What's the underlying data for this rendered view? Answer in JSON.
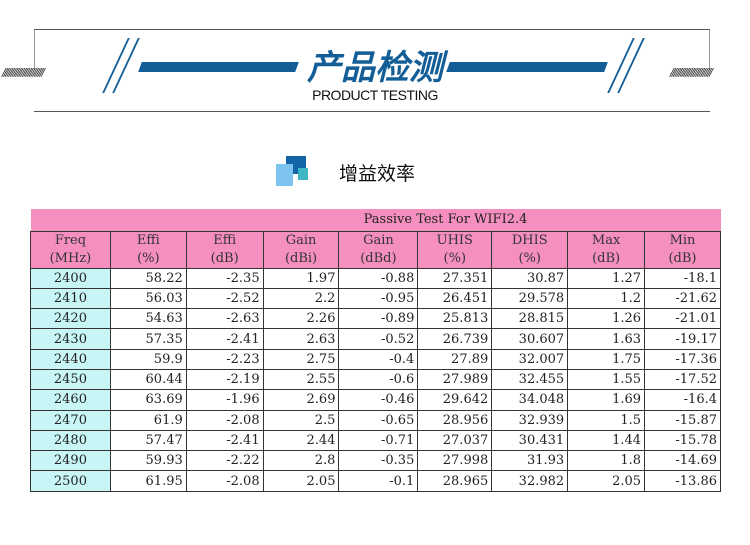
{
  "banner": {
    "title": "产品检测",
    "subtitle": "PRODUCT TESTING",
    "accent": "#135e96"
  },
  "section": {
    "title": "增益效率",
    "icon": "stacked-squares-icon"
  },
  "table": {
    "caption": "Passive Test For WIFI2.4",
    "headers": [
      [
        "Freq",
        "(MHz)"
      ],
      [
        "Effi",
        "(%)"
      ],
      [
        "Effi",
        "(dB)"
      ],
      [
        "Gain",
        "(dBi)"
      ],
      [
        "Gain",
        "(dBd)"
      ],
      [
        "UHIS",
        "(%)"
      ],
      [
        "DHIS",
        "(%)"
      ],
      [
        "Max",
        "(dB)"
      ],
      [
        "Min",
        "(dB)"
      ]
    ],
    "rows": [
      [
        "2400",
        "58.22",
        "-2.35",
        "1.97",
        "-0.88",
        "27.351",
        "30.87",
        "1.27",
        "-18.1"
      ],
      [
        "2410",
        "56.03",
        "-2.52",
        "2.2",
        "-0.95",
        "26.451",
        "29.578",
        "1.2",
        "-21.62"
      ],
      [
        "2420",
        "54.63",
        "-2.63",
        "2.26",
        "-0.89",
        "25.813",
        "28.815",
        "1.26",
        "-21.01"
      ],
      [
        "2430",
        "57.35",
        "-2.41",
        "2.63",
        "-0.52",
        "26.739",
        "30.607",
        "1.63",
        "-19.17"
      ],
      [
        "2440",
        "59.9",
        "-2.23",
        "2.75",
        "-0.4",
        "27.89",
        "32.007",
        "1.75",
        "-17.36"
      ],
      [
        "2450",
        "60.44",
        "-2.19",
        "2.55",
        "-0.6",
        "27.989",
        "32.455",
        "1.55",
        "-17.52"
      ],
      [
        "2460",
        "63.69",
        "-1.96",
        "2.69",
        "-0.46",
        "29.642",
        "34.048",
        "1.69",
        "-16.4"
      ],
      [
        "2470",
        "61.9",
        "-2.08",
        "2.5",
        "-0.65",
        "28.956",
        "32.939",
        "1.5",
        "-15.87"
      ],
      [
        "2480",
        "57.47",
        "-2.41",
        "2.44",
        "-0.71",
        "27.037",
        "30.431",
        "1.44",
        "-15.78"
      ],
      [
        "2490",
        "59.93",
        "-2.22",
        "2.8",
        "-0.35",
        "27.998",
        "31.93",
        "1.8",
        "-14.69"
      ],
      [
        "2500",
        "61.95",
        "-2.08",
        "2.05",
        "-0.1",
        "28.965",
        "32.982",
        "2.05",
        "-13.86"
      ]
    ],
    "header_color": "#f58fc0",
    "freq_color": "#c8f6f6"
  }
}
